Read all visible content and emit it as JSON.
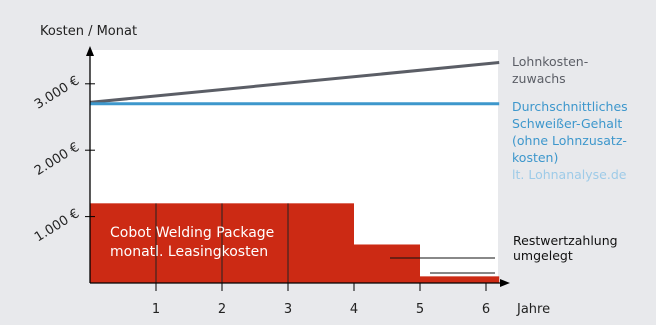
{
  "chart_data": {
    "type": "bar",
    "ylabel": "Kosten / Monat",
    "xlabel": "Jahre",
    "x_ticks": [
      "1",
      "2",
      "3",
      "4",
      "5",
      "6"
    ],
    "y_ticks": [
      {
        "value": 1000,
        "label": "1.000 €"
      },
      {
        "value": 2000,
        "label": "2.000 €"
      },
      {
        "value": 3000,
        "label": "3.000 €"
      }
    ],
    "xlim": [
      0,
      6.3
    ],
    "ylim": [
      0,
      3500
    ],
    "bars": [
      {
        "x0": 0,
        "x1": 4,
        "value": 1200
      },
      {
        "x0": 4,
        "x1": 5,
        "value": 580
      },
      {
        "x0": 5,
        "x1": 6.2,
        "value": 100
      }
    ],
    "lines": [
      {
        "name": "Lohnkosten-zuwachs",
        "x": [
          0,
          6.2
        ],
        "y": [
          2720,
          3320
        ],
        "color": "#5b5e66"
      },
      {
        "name": "Durchschnittliches Schweißer-Gehalt",
        "x": [
          0,
          6.2
        ],
        "y": [
          2700,
          2700
        ],
        "color": "#3d97cc"
      }
    ],
    "annotations": {
      "wage_growth": [
        "Lohnkosten-",
        "zuwachs"
      ],
      "salary": [
        "Durchschnittliches",
        "Schweißer-Gehalt",
        "(ohne Lohnzusatz-",
        "kosten)"
      ],
      "salary_source": "lt. Lohnanalyse.de",
      "package": [
        "Cobot Welding Package",
        "monatl. Leasingkosten"
      ],
      "residual": [
        "Restwertzahlung",
        "umgelegt"
      ]
    },
    "colors": {
      "bar": "#cc2a14",
      "axis": "#000000",
      "plot_bg": "#ffffff",
      "page_bg": "#e8e9ec",
      "text_salary": "#3d97cc",
      "text_source": "#9ecbe8",
      "text_wage": "#5b5e66"
    }
  }
}
